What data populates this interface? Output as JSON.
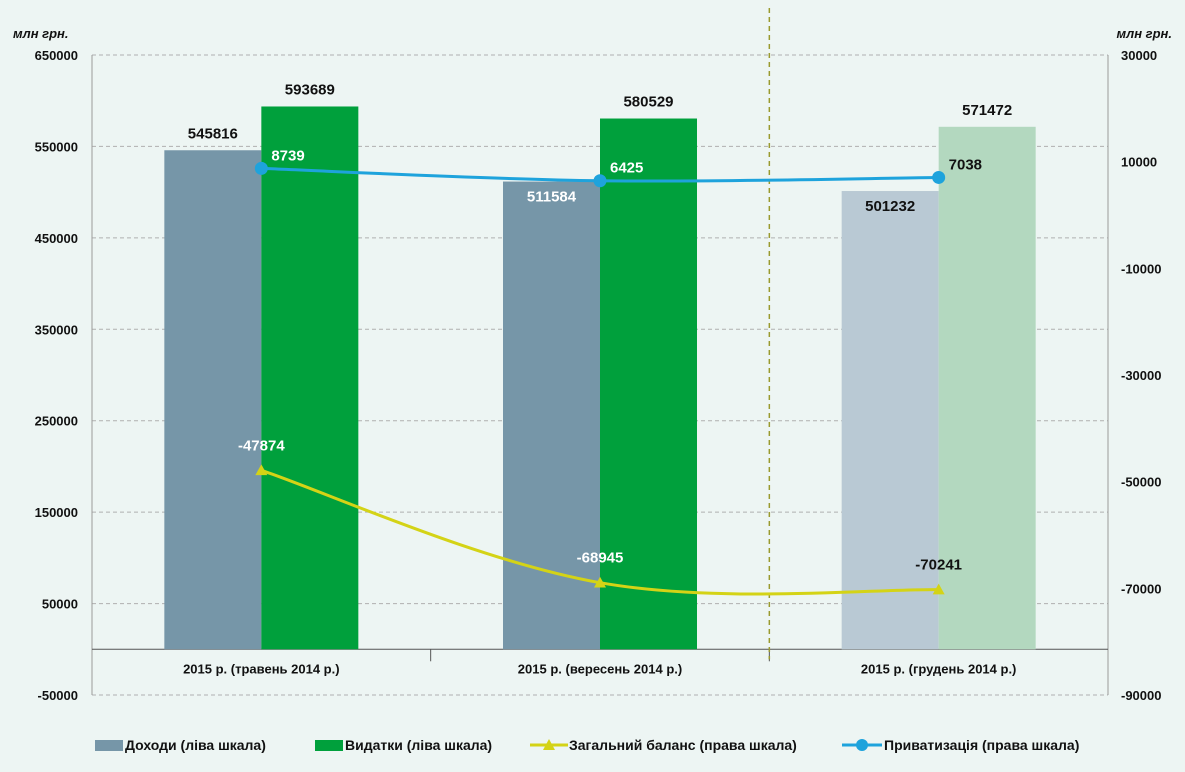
{
  "colors": {
    "background": "#edf5f3",
    "income": "#7696a8",
    "income_light": "#b9c9d4",
    "expense": "#00a03c",
    "expense_light": "#b3d8bf",
    "balance": "#d4d316",
    "privatization": "#1ea3dc",
    "grid": "#b0b0b0",
    "divider": "#9a9a2e"
  },
  "chart_data": {
    "type": "bar",
    "left_unit": "млн грн.",
    "right_unit": "млн грн.",
    "categories": [
      "2015 р. (травень 2014 р.)",
      "2015 р. (вересень 2014 р.)",
      "2015 р. (грудень 2014 р.)"
    ],
    "left_axis": {
      "min": -50000,
      "max": 650000,
      "ticks": [
        "650000",
        "550000",
        "450000",
        "350000",
        "250000",
        "150000",
        "50000",
        "-50000"
      ]
    },
    "right_axis": {
      "min": -90000,
      "max": 30000,
      "ticks": [
        "30000",
        "10000",
        "-10000",
        "-30000",
        "-50000",
        "-70000",
        "-90000"
      ]
    },
    "grid": true,
    "legend_position": "bottom",
    "series": [
      {
        "name": "Доходи (ліва шкала)",
        "type": "bar",
        "axis": "left",
        "values": [
          545816,
          511584,
          501232
        ],
        "labels": [
          "545816",
          "511584",
          "501232"
        ]
      },
      {
        "name": "Видатки (ліва шкала)",
        "type": "bar",
        "axis": "left",
        "values": [
          593689,
          580529,
          571472
        ],
        "labels": [
          "593689",
          "580529",
          "571472"
        ]
      },
      {
        "name": "Загальний баланс  (права шкала)",
        "type": "line",
        "axis": "right",
        "values": [
          -47874,
          -68945,
          -70241
        ],
        "labels": [
          "-47874",
          "-68945",
          "-70241"
        ]
      },
      {
        "name": "Приватизація (права шкала)",
        "type": "line",
        "axis": "right",
        "values": [
          8739,
          6425,
          7038
        ],
        "labels": [
          "8739",
          "6425",
          "7038"
        ]
      }
    ]
  }
}
